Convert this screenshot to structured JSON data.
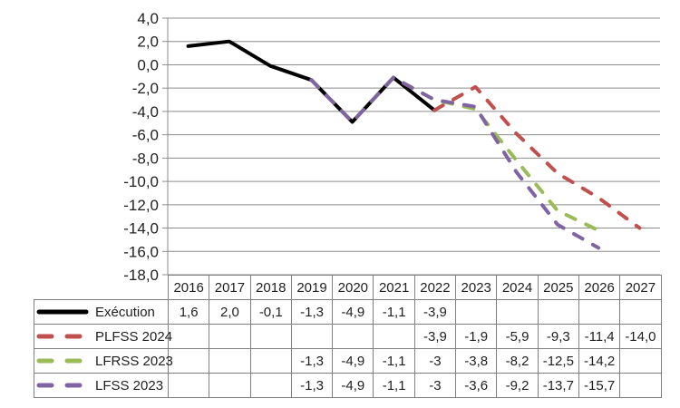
{
  "chart_data": {
    "type": "line",
    "categories": [
      "2016",
      "2017",
      "2018",
      "2019",
      "2020",
      "2021",
      "2022",
      "2023",
      "2024",
      "2025",
      "2026",
      "2027"
    ],
    "series": [
      {
        "name": "Exécution",
        "color": "#000000",
        "dashed": false,
        "values": [
          1.6,
          2.0,
          -0.1,
          -1.3,
          -4.9,
          -1.1,
          -3.9,
          null,
          null,
          null,
          null,
          null
        ],
        "display": [
          "1,6",
          "2,0",
          "-0,1",
          "-1,3",
          "-4,9",
          "-1,1",
          "-3,9",
          "",
          "",
          "",
          "",
          ""
        ]
      },
      {
        "name": "PLFSS 2024",
        "color": "#C0504D",
        "dashed": true,
        "values": [
          null,
          null,
          null,
          null,
          null,
          null,
          -3.9,
          -1.9,
          -5.9,
          -9.3,
          -11.4,
          -14.0
        ],
        "display": [
          "",
          "",
          "",
          "",
          "",
          "",
          "-3,9",
          "-1,9",
          "-5,9",
          "-9,3",
          "-11,4",
          "-14,0"
        ]
      },
      {
        "name": "LFRSS 2023",
        "color": "#9BBB59",
        "dashed": true,
        "values": [
          null,
          null,
          null,
          -1.3,
          -4.9,
          -1.1,
          -3,
          -3.8,
          -8.2,
          -12.5,
          -14.2,
          null
        ],
        "display": [
          "",
          "",
          "",
          "-1,3",
          "-4,9",
          "-1,1",
          "-3",
          "-3,8",
          "-8,2",
          "-12,5",
          "-14,2",
          ""
        ]
      },
      {
        "name": "LFSS 2023",
        "color": "#8064A2",
        "dashed": true,
        "values": [
          null,
          null,
          null,
          -1.3,
          -4.9,
          -1.1,
          -3,
          -3.6,
          -9.2,
          -13.7,
          -15.7,
          null
        ],
        "display": [
          "",
          "",
          "",
          "-1,3",
          "-4,9",
          "-1,1",
          "-3",
          "-3,6",
          "-9,2",
          "-13,7",
          "-15,7",
          ""
        ]
      }
    ],
    "title": "",
    "xlabel": "",
    "ylabel": "",
    "ylim": [
      -18,
      4
    ],
    "ytick_step": 2,
    "yticks_labels": [
      "4,0",
      "2,0",
      "0,0",
      "-2,0",
      "-4,0",
      "-6,0",
      "-8,0",
      "-10,0",
      "-12,0",
      "-14,0",
      "-16,0",
      "-18,0"
    ],
    "grid": true,
    "legend_position": "left-of-table-rows",
    "grid_color": "#8C8C8C",
    "axis_color": "#8C8C8C",
    "table_border_color": "#808080"
  }
}
